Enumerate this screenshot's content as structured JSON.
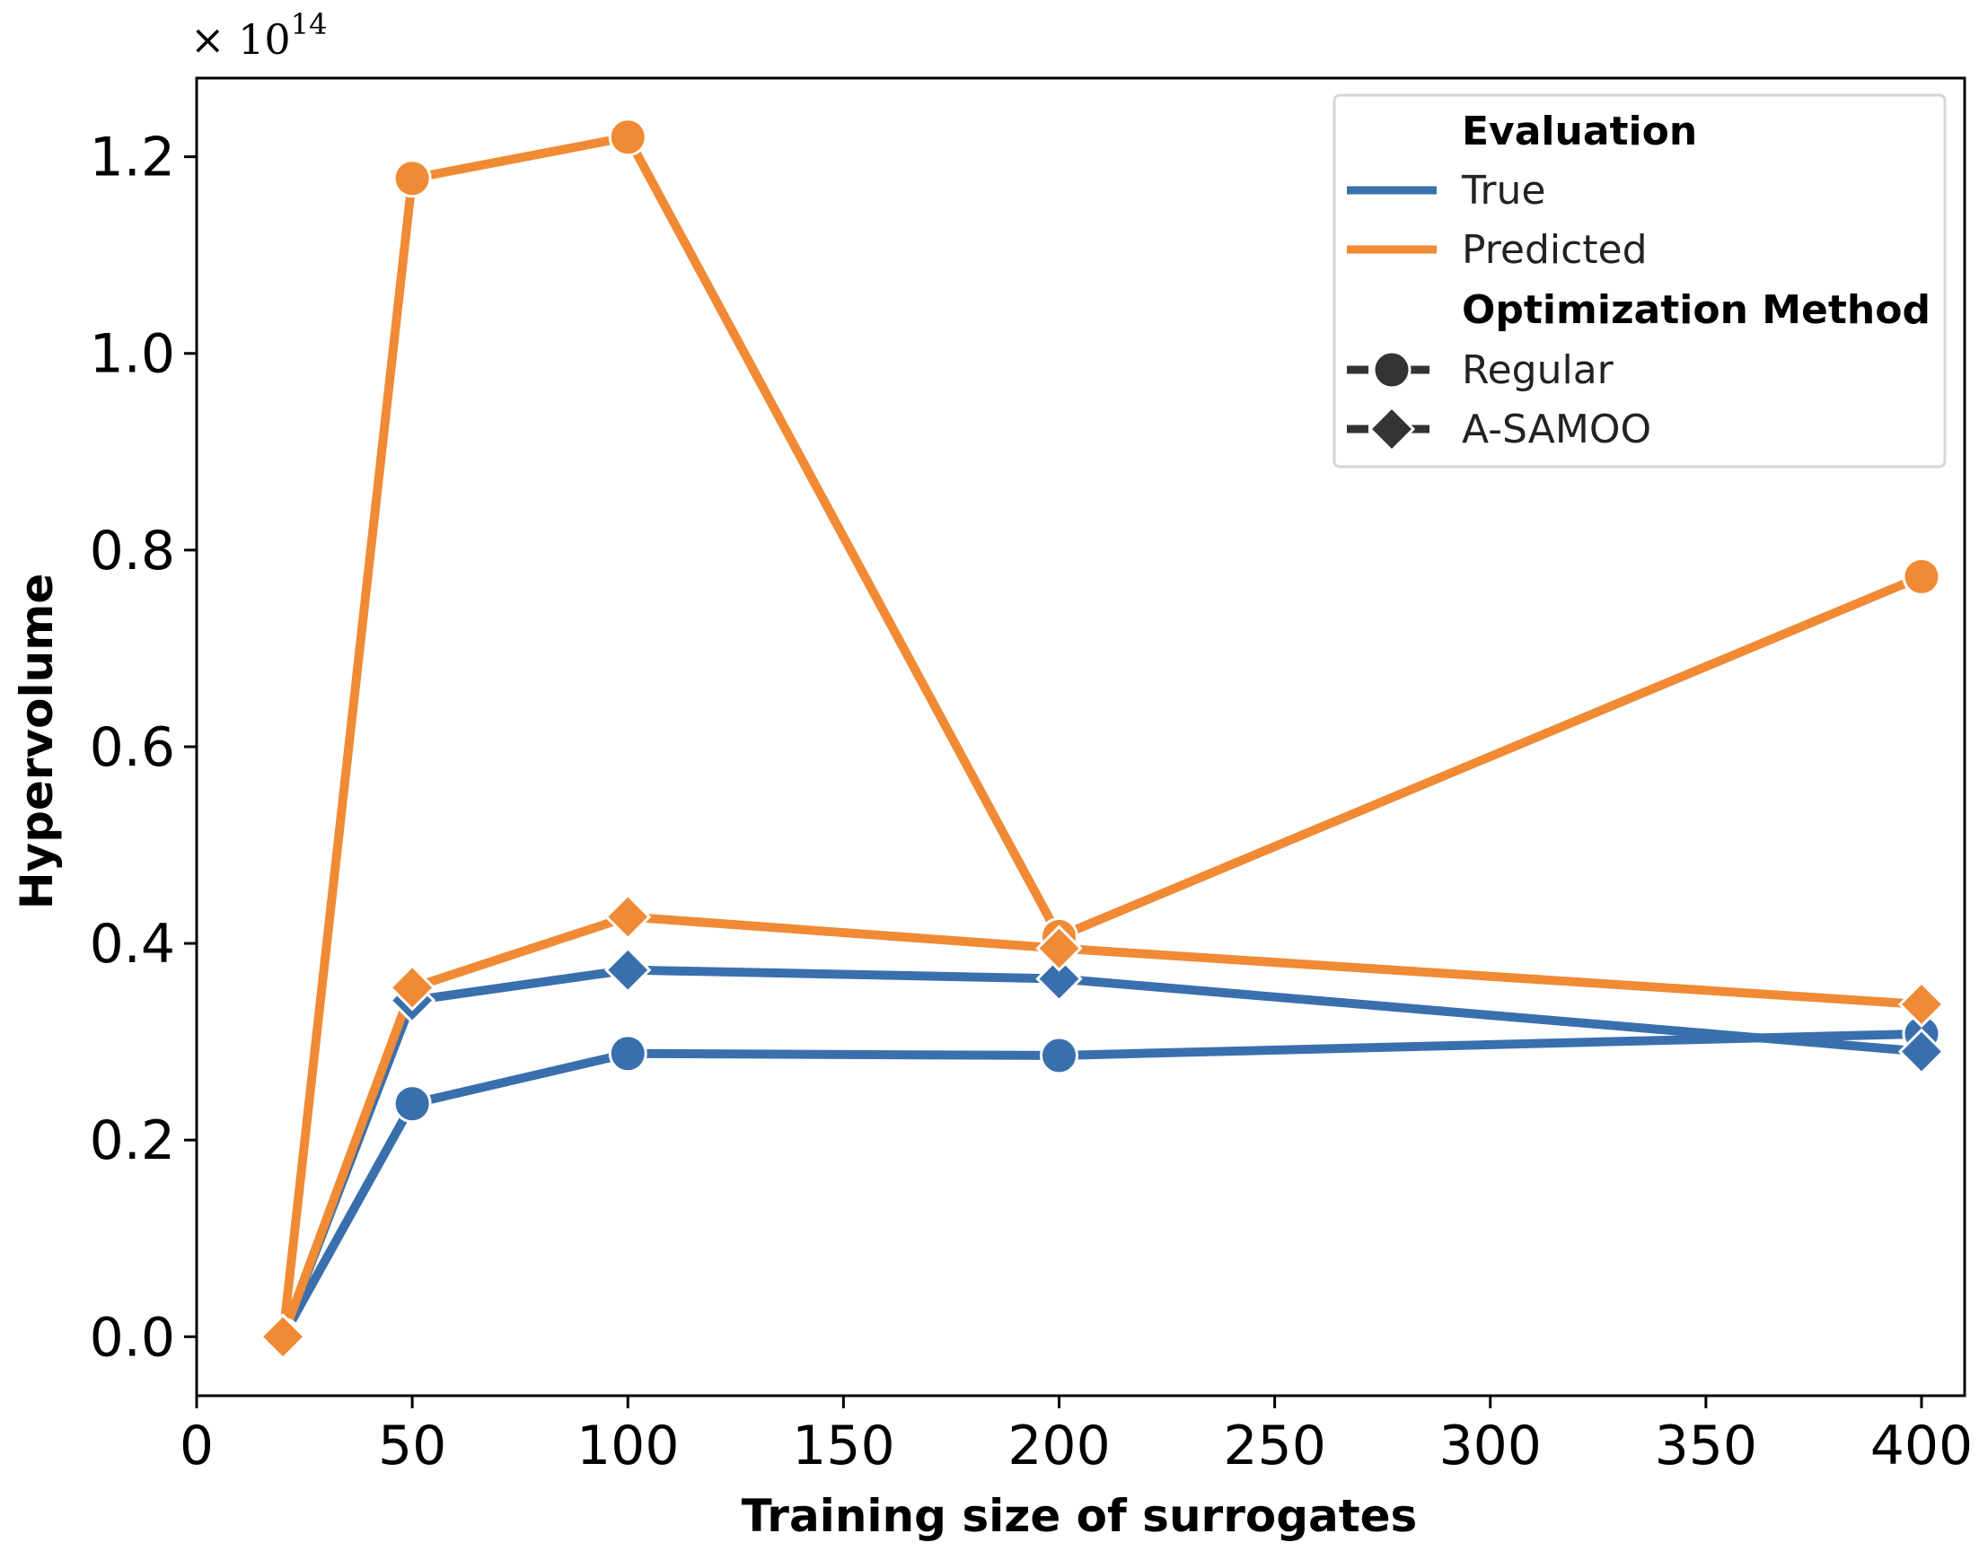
{
  "chart_data": {
    "type": "line",
    "title": "",
    "xlabel": "Training size of surrogates",
    "ylabel": "Hypervolume",
    "y_offset_text": "× 10",
    "y_offset_exponent": "14",
    "xlim": [
      0,
      410
    ],
    "ylim": [
      -0.06,
      1.28
    ],
    "xticks": [
      0,
      50,
      100,
      150,
      200,
      250,
      300,
      350,
      400
    ],
    "xtick_labels": [
      "0",
      "50",
      "100",
      "150",
      "200",
      "250",
      "300",
      "350",
      "400"
    ],
    "yticks": [
      0.0,
      0.2,
      0.4,
      0.6,
      0.8,
      1.0,
      1.2
    ],
    "ytick_labels": [
      "0.0",
      "0.2",
      "0.4",
      "0.6",
      "0.8",
      "1.0",
      "1.2"
    ],
    "grid": false,
    "colors": {
      "True": "#3a6fae",
      "Predicted": "#f08a35"
    },
    "series": [
      {
        "name": "True - Regular",
        "evaluation": "True",
        "method": "Regular",
        "marker": "circle",
        "x": [
          20,
          50,
          100,
          200,
          400
        ],
        "y": [
          0.0,
          0.237,
          0.288,
          0.286,
          0.308
        ]
      },
      {
        "name": "True - A-SAMOO",
        "evaluation": "True",
        "method": "A-SAMOO",
        "marker": "diamond",
        "x": [
          20,
          50,
          100,
          200,
          400
        ],
        "y": [
          0.0,
          0.342,
          0.373,
          0.364,
          0.29
        ]
      },
      {
        "name": "Predicted - Regular",
        "evaluation": "Predicted",
        "method": "Regular",
        "marker": "circle",
        "x": [
          20,
          50,
          100,
          200,
          400
        ],
        "y": [
          0.0,
          1.178,
          1.22,
          0.407,
          0.773
        ]
      },
      {
        "name": "Predicted - A-SAMOO",
        "evaluation": "Predicted",
        "method": "A-SAMOO",
        "marker": "diamond",
        "x": [
          20,
          50,
          100,
          200,
          400
        ],
        "y": [
          0.0,
          0.355,
          0.427,
          0.395,
          0.338
        ]
      }
    ],
    "legend": {
      "position": "top-right",
      "evaluation_heading": "Evaluation",
      "true_label": "True",
      "predicted_label": "Predicted",
      "method_heading": "Optimization Method",
      "regular_label": "Regular",
      "asamoo_label": "A-SAMOO",
      "marker_legend_color": "#333333"
    }
  }
}
